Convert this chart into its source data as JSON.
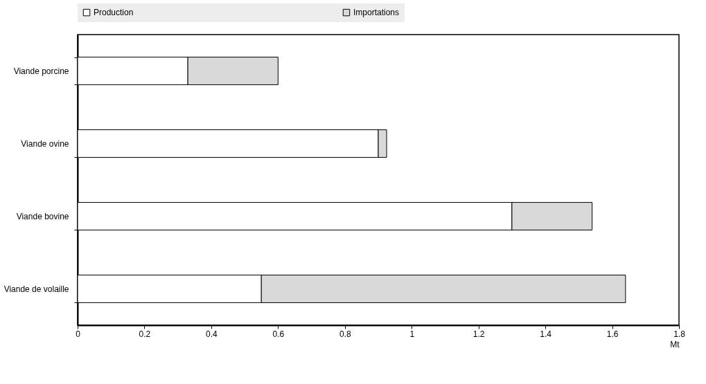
{
  "chart_data": {
    "type": "bar",
    "orientation": "horizontal",
    "stacked": true,
    "xlabel": "Mt",
    "categories": [
      "Viande porcine",
      "Viande ovine",
      "Viande bovine",
      "Viande de volaille"
    ],
    "series": [
      {
        "name": "Production",
        "color": "#ffffff",
        "values": [
          0.33,
          0.9,
          1.3,
          0.55
        ]
      },
      {
        "name": "Importations",
        "color": "#d9d9d9",
        "values": [
          0.27,
          0.025,
          0.24,
          1.09
        ]
      }
    ],
    "xlim": [
      0,
      1.8
    ],
    "xticks": [
      0,
      0.2,
      0.4,
      0.6,
      0.8,
      1,
      1.2,
      1.4,
      1.6,
      1.8
    ],
    "grid": false,
    "legend": "top"
  }
}
